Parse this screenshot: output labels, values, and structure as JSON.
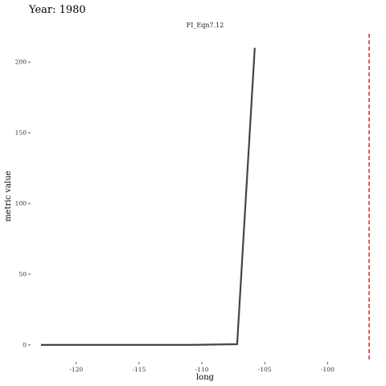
{
  "chart_data": {
    "type": "line",
    "title": "Year: 1980",
    "subtitle": "FI_Eqn7.12",
    "xlabel": "long",
    "ylabel": "metric value",
    "xlim": [
      -123.5,
      -96
    ],
    "ylim": [
      -12,
      220
    ],
    "x_ticks": [
      -120,
      -115,
      -110,
      -105,
      -100
    ],
    "y_ticks": [
      0,
      50,
      100,
      150,
      200
    ],
    "series": [
      {
        "x": [
          -122.8,
          -117,
          -111,
          -107.2,
          -105.8
        ],
        "y": [
          0,
          0,
          0,
          0.5,
          210
        ],
        "color": "#444444"
      }
    ],
    "reference_line": {
      "x": -96.7,
      "color": "#e00000",
      "style": "dashed"
    },
    "grid": false,
    "legend": "none"
  }
}
